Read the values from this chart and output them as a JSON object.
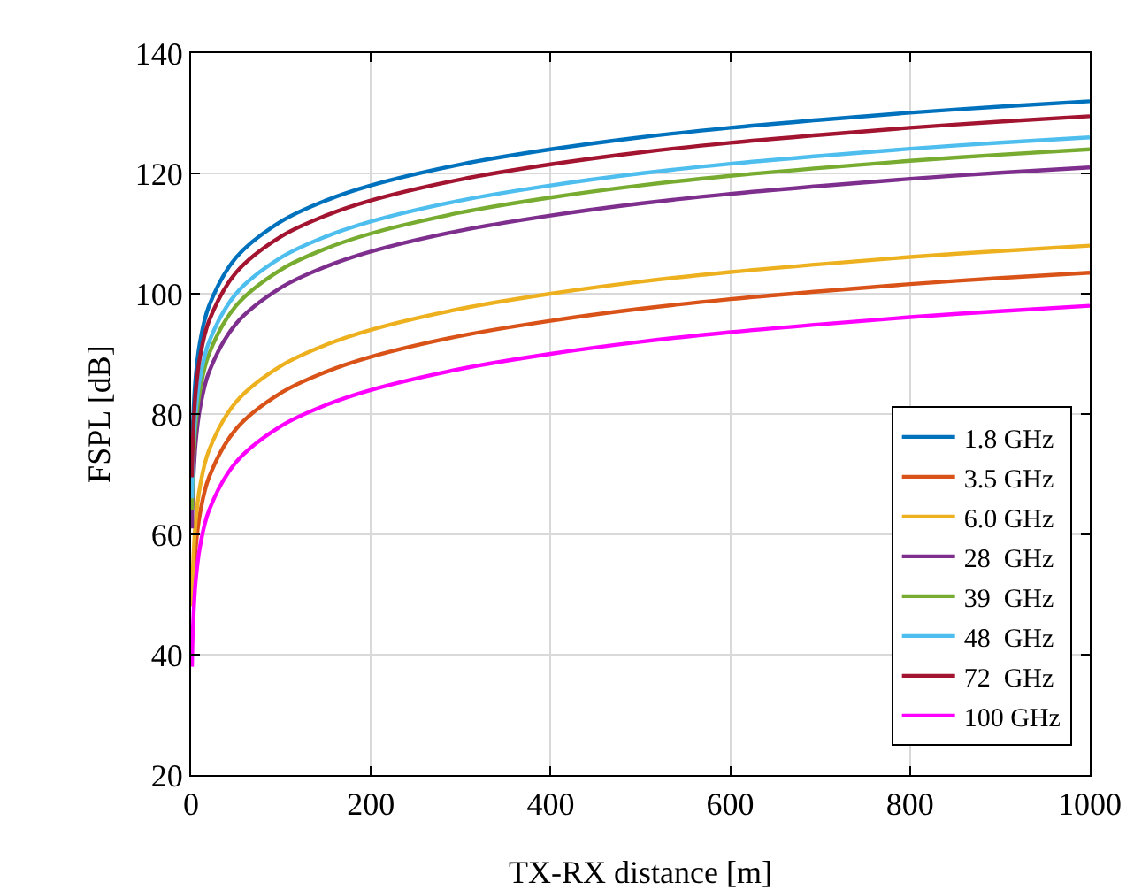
{
  "chart_data": {
    "type": "line",
    "xlabel": "TX-RX distance [m]",
    "ylabel": "FSPL [dB]",
    "x": [
      1,
      2,
      5,
      10,
      20,
      50,
      100,
      150,
      200,
      300,
      400,
      500,
      600,
      700,
      800,
      900,
      1000
    ],
    "xlim": [
      0,
      1000
    ],
    "xticks": [
      0,
      200,
      400,
      600,
      800,
      1000
    ],
    "ylim": [
      20,
      140
    ],
    "yticks": [
      20,
      40,
      60,
      80,
      100,
      120,
      140
    ],
    "grid": true,
    "legend": "bottom right",
    "marker": "none",
    "line_style": "solid",
    "series": [
      {
        "name": "1.8 GHz",
        "color": "#0072bd",
        "values": [
          72,
          78,
          86,
          92,
          98,
          106,
          112,
          115.5,
          118,
          121.5,
          124,
          126,
          127.6,
          128.9,
          130.1,
          131.1,
          132
        ]
      },
      {
        "name": "3.5 GHz",
        "color": "#d95319",
        "values": [
          null,
          49.5,
          57.5,
          63.5,
          69.5,
          77.5,
          83.5,
          87,
          89.5,
          93,
          95.5,
          97.5,
          99.1,
          100.4,
          101.6,
          102.6,
          103.5
        ]
      },
      {
        "name": "6.0 GHz",
        "color": "#edb120",
        "values": [
          48,
          54,
          62,
          68,
          74,
          82,
          88,
          91.5,
          94,
          97.5,
          100,
          102,
          103.6,
          104.9,
          106.1,
          107.1,
          108
        ]
      },
      {
        "name": "28  GHz",
        "color": "#7e2f8e",
        "values": [
          61,
          67,
          75,
          81,
          87,
          95,
          101,
          104.5,
          107,
          110.5,
          113,
          115,
          116.6,
          117.9,
          119.1,
          120.1,
          121
        ]
      },
      {
        "name": "39  GHz",
        "color": "#77ac30",
        "values": [
          64,
          70,
          78,
          84,
          90,
          98,
          104,
          107.5,
          110,
          113.5,
          116,
          118,
          119.6,
          120.9,
          122.1,
          123.1,
          124
        ]
      },
      {
        "name": "48  GHz",
        "color": "#4dbeee",
        "values": [
          66,
          72,
          80,
          86,
          92,
          100,
          106,
          109.5,
          112,
          115.5,
          118,
          120,
          121.6,
          122.9,
          124.1,
          125.1,
          126
        ]
      },
      {
        "name": "72  GHz",
        "color": "#a2142f",
        "values": [
          69.5,
          75.5,
          83.5,
          89.5,
          95.5,
          103.5,
          109.5,
          113,
          115.5,
          119,
          121.5,
          123.5,
          125.1,
          126.4,
          127.6,
          128.6,
          129.5
        ]
      },
      {
        "name": "100 GHz",
        "color": "#ff00ff",
        "values": [
          38,
          44,
          52,
          58,
          64,
          72,
          78,
          81.5,
          84,
          87.5,
          90,
          92,
          93.6,
          94.9,
          96.1,
          97.1,
          98
        ]
      }
    ]
  }
}
